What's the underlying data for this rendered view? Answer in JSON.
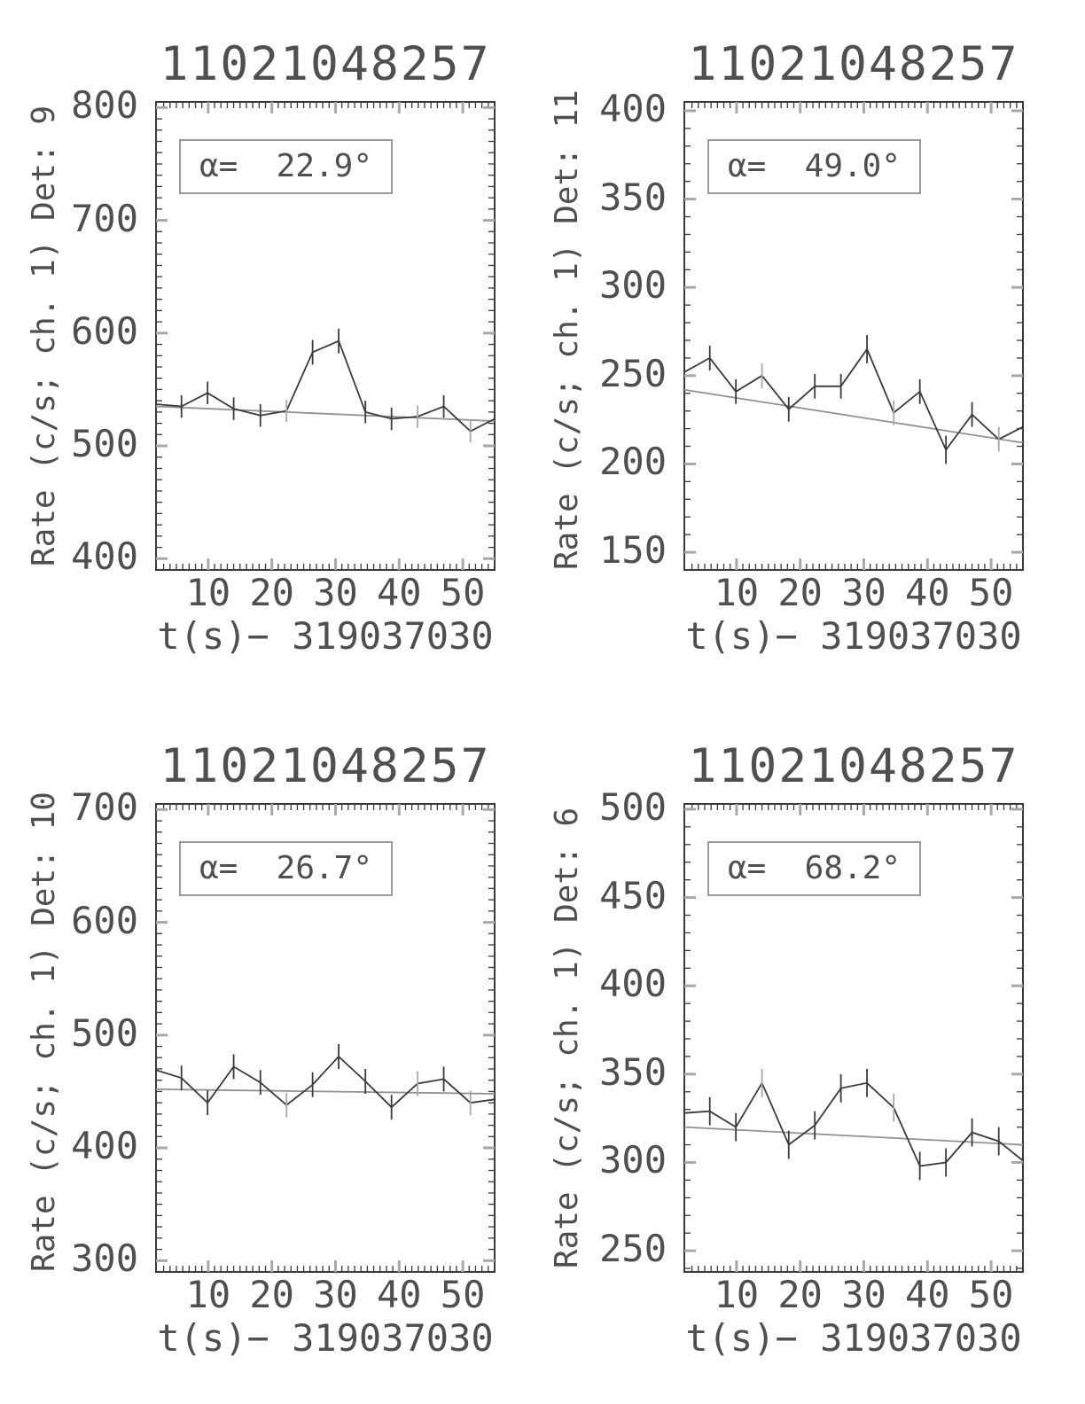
{
  "colors": {
    "background": "#ffffff",
    "text": "#4f4f4f",
    "data_line": "#3a3a3a",
    "trend_line": "#919191",
    "major_tick": "#a8a8a8",
    "minor_tick": "#3a3a3a",
    "box_border": "#3a3a3a",
    "annotation_border": "#9a9a9a"
  },
  "plots": [
    {
      "title": "11021048257",
      "ylabel": "Rate (c/s; ch. 1) Det: 9",
      "xlabel": "t(s)− 319037030",
      "alpha_label": "α=  22.9°"
    },
    {
      "title": "11021048257",
      "ylabel": "Rate (c/s; ch. 1) Det: 11",
      "xlabel": "t(s)− 319037030",
      "alpha_label": "α=  49.0°"
    },
    {
      "title": "11021048257",
      "ylabel": "Rate (c/s; ch. 1) Det: 10",
      "xlabel": "t(s)− 319037030",
      "alpha_label": "α=  26.7°"
    },
    {
      "title": "11021048257",
      "ylabel": "Rate (c/s; ch. 1) Det: 6",
      "xlabel": "t(s)− 319037030",
      "alpha_label": "α=  68.2°"
    }
  ],
  "chart_data": [
    {
      "type": "line",
      "title": "11021048257",
      "ylabel": "Rate (c/s; ch. 1) Det: 9",
      "xlabel": "t(s)− 319037030",
      "annotation": "α= 22.9°",
      "x": [
        1.8,
        5.8,
        9.9,
        14.0,
        18.2,
        22.3,
        26.4,
        30.5,
        34.7,
        38.8,
        42.9,
        47.0,
        51.2,
        55.0
      ],
      "y": [
        537,
        535,
        547,
        533,
        527,
        531,
        583,
        593,
        530,
        524,
        526,
        535,
        513,
        524
      ],
      "yerr": [
        0,
        10,
        10,
        10,
        10,
        10,
        11,
        11,
        10,
        10,
        10,
        10,
        10,
        0
      ],
      "trend_x": [
        1.8,
        55.0
      ],
      "trend_y": [
        535,
        522
      ],
      "xlim": [
        1.8,
        55.0
      ],
      "ylim": [
        390,
        805
      ],
      "xticks": [
        10,
        20,
        30,
        40,
        50
      ],
      "yticks": [
        400,
        500,
        600,
        700,
        800
      ],
      "x_minor_step": 1,
      "y_minor_step": 10,
      "gray_error_indices": [
        5,
        10,
        12
      ],
      "grid": false,
      "legend": "none"
    },
    {
      "type": "line",
      "title": "11021048257",
      "ylabel": "Rate (c/s; ch. 1) Det: 11",
      "xlabel": "t(s)− 319037030",
      "annotation": "α= 49.0°",
      "x": [
        1.8,
        5.8,
        9.9,
        14.0,
        18.2,
        22.3,
        26.4,
        30.5,
        34.7,
        38.8,
        42.9,
        47.0,
        51.2,
        55.0
      ],
      "y": [
        252,
        260,
        241,
        250,
        231,
        244,
        244,
        265,
        229,
        241,
        208,
        228,
        214,
        221
      ],
      "yerr": [
        0,
        7,
        7,
        7,
        7,
        7,
        7,
        8,
        7,
        7,
        8,
        7,
        7,
        0
      ],
      "trend_x": [
        1.8,
        55.0
      ],
      "trend_y": [
        242,
        212
      ],
      "xlim": [
        1.8,
        55.0
      ],
      "ylim": [
        140,
        405
      ],
      "xticks": [
        10,
        20,
        30,
        40,
        50
      ],
      "yticks": [
        150,
        200,
        250,
        300,
        350,
        400
      ],
      "x_minor_step": 1,
      "y_minor_step": 10,
      "gray_error_indices": [
        3,
        8,
        12
      ],
      "grid": false,
      "legend": "none"
    },
    {
      "type": "line",
      "title": "11021048257",
      "ylabel": "Rate (c/s; ch. 1) Det: 10",
      "xlabel": "t(s)− 319037030",
      "annotation": "α= 26.7°",
      "x": [
        1.8,
        5.8,
        9.9,
        14.0,
        18.2,
        22.3,
        26.4,
        30.5,
        34.7,
        38.8,
        42.9,
        47.0,
        51.2,
        55.0
      ],
      "y": [
        469,
        462,
        440,
        472,
        458,
        438,
        456,
        481,
        459,
        436,
        457,
        461,
        440,
        443
      ],
      "yerr": [
        0,
        11,
        11,
        11,
        11,
        11,
        11,
        11,
        11,
        11,
        11,
        11,
        11,
        0
      ],
      "trend_x": [
        1.8,
        55.0
      ],
      "trend_y": [
        452,
        448
      ],
      "xlim": [
        1.8,
        55.0
      ],
      "ylim": [
        290,
        705
      ],
      "xticks": [
        10,
        20,
        30,
        40,
        50
      ],
      "yticks": [
        300,
        400,
        500,
        600,
        700
      ],
      "x_minor_step": 1,
      "y_minor_step": 10,
      "gray_error_indices": [
        5,
        10,
        12
      ],
      "grid": false,
      "legend": "none"
    },
    {
      "type": "line",
      "title": "11021048257",
      "ylabel": "Rate (c/s; ch. 1) Det: 6",
      "xlabel": "t(s)− 319037030",
      "annotation": "α= 68.2°",
      "x": [
        1.8,
        5.8,
        9.9,
        14.0,
        18.2,
        22.3,
        26.4,
        30.5,
        34.7,
        38.8,
        42.9,
        47.0,
        51.2,
        55.0
      ],
      "y": [
        328,
        329,
        320,
        345,
        310,
        321,
        342,
        345,
        331,
        298,
        300,
        317,
        312,
        301
      ],
      "yerr": [
        0,
        8,
        8,
        8,
        8,
        8,
        8,
        8,
        8,
        8,
        8,
        8,
        8,
        0
      ],
      "trend_x": [
        1.8,
        55.0
      ],
      "trend_y": [
        320,
        310
      ],
      "xlim": [
        1.8,
        55.0
      ],
      "ylim": [
        238,
        503
      ],
      "xticks": [
        10,
        20,
        30,
        40,
        50
      ],
      "yticks": [
        250,
        300,
        350,
        400,
        450,
        500
      ],
      "x_minor_step": 1,
      "y_minor_step": 10,
      "gray_error_indices": [
        3,
        8
      ],
      "grid": false,
      "legend": "none"
    }
  ]
}
